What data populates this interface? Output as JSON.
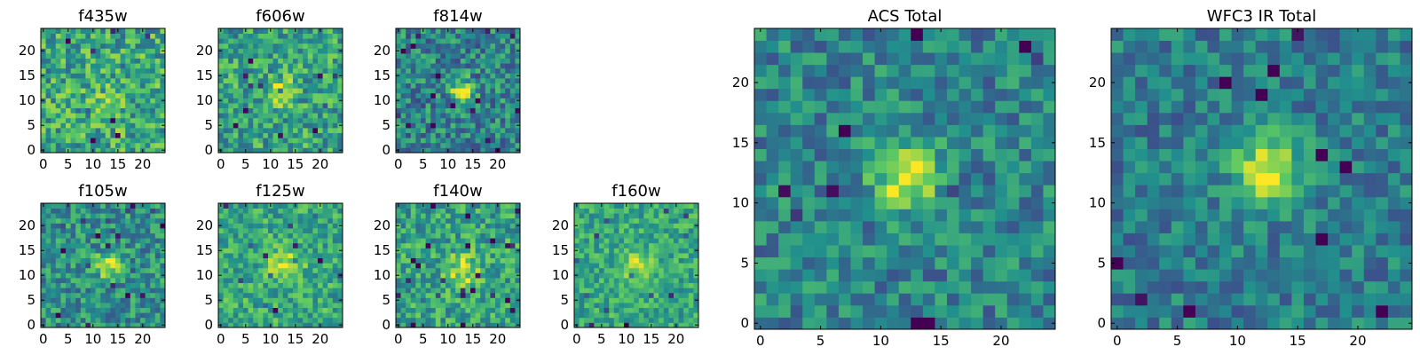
{
  "colormap": [
    "#440154",
    "#3b528b",
    "#21908d",
    "#5dc963",
    "#fde725"
  ],
  "chart_data": [
    {
      "type": "heatmap",
      "title": "f435w",
      "grid": false,
      "xlim": [
        0,
        24
      ],
      "ylim": [
        0,
        24
      ],
      "xticks": [
        "0",
        "5",
        "10",
        "15",
        "20"
      ],
      "yticks": [
        "0",
        "5",
        "10",
        "15",
        "20"
      ],
      "peak": [
        13,
        9
      ],
      "peak_width": 2.5,
      "peak_amp": 0.15,
      "background": 0.6,
      "noise": 0.26,
      "seed": 11
    },
    {
      "type": "heatmap",
      "title": "f606w",
      "grid": false,
      "xlim": [
        0,
        24
      ],
      "ylim": [
        0,
        24
      ],
      "xticks": [
        "0",
        "5",
        "10",
        "15",
        "20"
      ],
      "yticks": [
        "0",
        "5",
        "10",
        "15",
        "20"
      ],
      "peak": [
        12,
        12
      ],
      "peak_width": 2.0,
      "peak_amp": 0.3,
      "background": 0.58,
      "noise": 0.24,
      "seed": 23
    },
    {
      "type": "heatmap",
      "title": "f814w",
      "grid": false,
      "xlim": [
        0,
        24
      ],
      "ylim": [
        0,
        24
      ],
      "xticks": [
        "0",
        "5",
        "10",
        "15",
        "20"
      ],
      "yticks": [
        "0",
        "5",
        "10",
        "15",
        "20"
      ],
      "peak": [
        13,
        12
      ],
      "peak_width": 1.6,
      "peak_amp": 0.55,
      "background": 0.45,
      "noise": 0.24,
      "seed": 37
    },
    {
      "type": "heatmap",
      "title": "f105w",
      "grid": false,
      "xlim": [
        0,
        24
      ],
      "ylim": [
        0,
        24
      ],
      "xticks": [
        "0",
        "5",
        "10",
        "15",
        "20"
      ],
      "yticks": [
        "0",
        "5",
        "10",
        "15",
        "20"
      ],
      "peak": [
        13,
        12
      ],
      "peak_width": 1.7,
      "peak_amp": 0.45,
      "background": 0.5,
      "noise": 0.22,
      "seed": 41
    },
    {
      "type": "heatmap",
      "title": "f125w",
      "grid": false,
      "xlim": [
        0,
        24
      ],
      "ylim": [
        0,
        24
      ],
      "xticks": [
        "0",
        "5",
        "10",
        "15",
        "20"
      ],
      "yticks": [
        "0",
        "5",
        "10",
        "15",
        "20"
      ],
      "peak": [
        13,
        12
      ],
      "peak_width": 2.2,
      "peak_amp": 0.35,
      "background": 0.6,
      "noise": 0.2,
      "seed": 53
    },
    {
      "type": "heatmap",
      "title": "f140w",
      "grid": false,
      "xlim": [
        0,
        24
      ],
      "ylim": [
        0,
        24
      ],
      "xticks": [
        "0",
        "5",
        "10",
        "15",
        "20"
      ],
      "yticks": [
        "0",
        "5",
        "10",
        "15",
        "20"
      ],
      "peak": [
        13,
        11
      ],
      "peak_width": 2.2,
      "peak_amp": 0.35,
      "background": 0.58,
      "noise": 0.22,
      "seed": 67
    },
    {
      "type": "heatmap",
      "title": "f160w",
      "grid": false,
      "xlim": [
        0,
        24
      ],
      "ylim": [
        0,
        24
      ],
      "xticks": [
        "0",
        "5",
        "10",
        "15",
        "20"
      ],
      "yticks": [
        "0",
        "5",
        "10",
        "15",
        "20"
      ],
      "peak": [
        12,
        12
      ],
      "peak_width": 2.2,
      "peak_amp": 0.3,
      "background": 0.6,
      "noise": 0.18,
      "seed": 79
    },
    {
      "type": "heatmap",
      "title": "ACS Total",
      "grid": false,
      "xlim": [
        0,
        24
      ],
      "ylim": [
        0,
        24
      ],
      "xticks": [
        "0",
        "5",
        "10",
        "15",
        "20"
      ],
      "yticks": [
        "0",
        "5",
        "10",
        "15",
        "20"
      ],
      "peak": [
        12,
        12
      ],
      "peak_width": 1.8,
      "peak_amp": 0.55,
      "background": 0.45,
      "noise": 0.2,
      "seed": 97
    },
    {
      "type": "heatmap",
      "title": "WFC3 IR Total",
      "grid": false,
      "xlim": [
        0,
        24
      ],
      "ylim": [
        0,
        24
      ],
      "xticks": [
        "0",
        "5",
        "10",
        "15",
        "20"
      ],
      "yticks": [
        "0",
        "5",
        "10",
        "15",
        "20"
      ],
      "peak": [
        12.5,
        12.5
      ],
      "peak_width": 2.0,
      "peak_amp": 0.6,
      "background": 0.42,
      "noise": 0.18,
      "seed": 113
    }
  ]
}
